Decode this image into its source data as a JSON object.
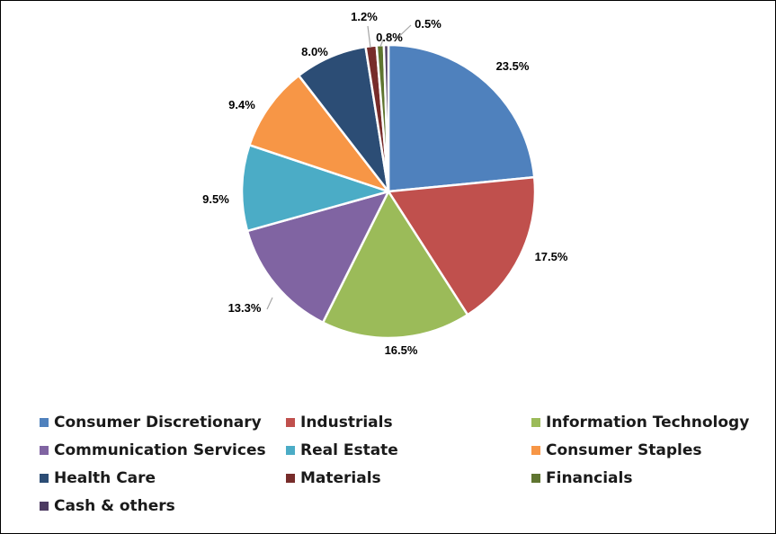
{
  "chart_data": {
    "type": "pie",
    "title": "",
    "legend_position": "bottom",
    "slices": [
      {
        "label": "Consumer Discretionary",
        "value": 23.5,
        "value_label": "23.5%",
        "color": "#4F81BD"
      },
      {
        "label": "Industrials",
        "value": 17.5,
        "value_label": "17.5%",
        "color": "#C0504D"
      },
      {
        "label": "Information Technology",
        "value": 16.5,
        "value_label": "16.5%",
        "color": "#9BBB59"
      },
      {
        "label": "Communication Services",
        "value": 13.3,
        "value_label": "13.3%",
        "color": "#8064A2"
      },
      {
        "label": "Real Estate",
        "value": 9.5,
        "value_label": "9.5%",
        "color": "#4BACC6"
      },
      {
        "label": "Consumer Staples",
        "value": 9.4,
        "value_label": "9.4%",
        "color": "#F79646"
      },
      {
        "label": "Health Care",
        "value": 8.0,
        "value_label": "8.0%",
        "color": "#2C4D75"
      },
      {
        "label": "Materials",
        "value": 1.2,
        "value_label": "1.2%",
        "color": "#772C2A"
      },
      {
        "label": "Financials",
        "value": 0.8,
        "value_label": "0.8%",
        "color": "#5F7530"
      },
      {
        "label": "Cash & others",
        "value": 0.5,
        "value_label": "0.5%",
        "color": "#4D3B62"
      }
    ]
  }
}
